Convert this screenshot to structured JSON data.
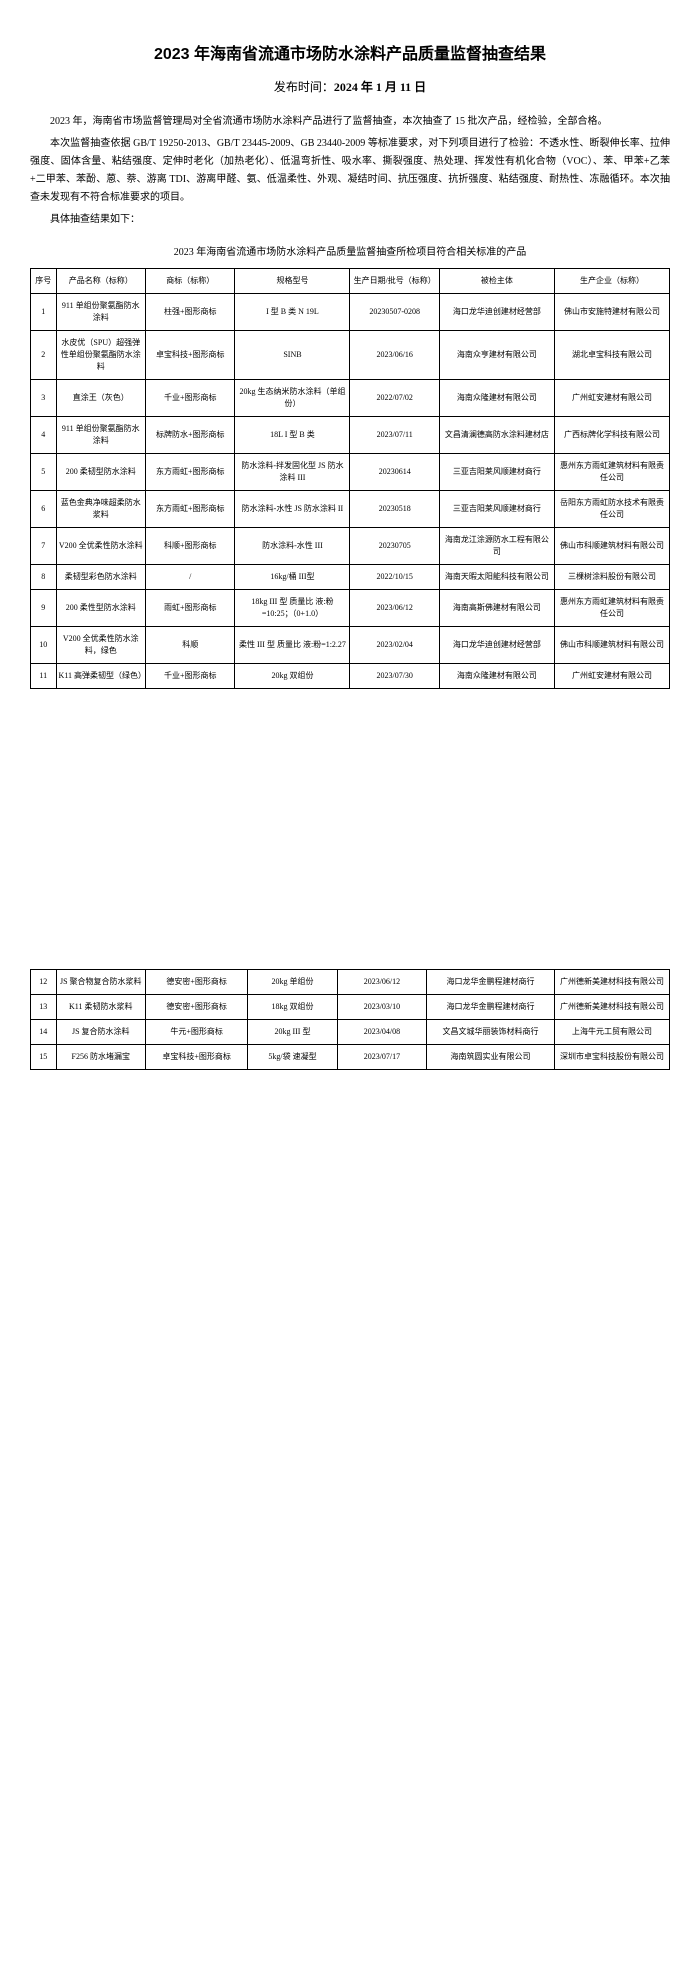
{
  "doc": {
    "title": "2023 年海南省流通市场防水涂料产品质量监督抽查结果",
    "publish_label": "发布时间：",
    "publish_date": "2024 年 1 月 11 日",
    "para1": "2023 年，海南省市场监督管理局对全省流通市场防水涂料产品进行了监督抽查，本次抽查了 15 批次产品，经检验，全部合格。",
    "para2": "本次监督抽查依据 GB/T 19250-2013、GB/T 23445-2009、GB 23440-2009 等标准要求，对下列项目进行了检验：不透水性、断裂伸长率、拉伸强度、固体含量、粘结强度、定伸时老化（加热老化）、低温弯折性、吸水率、撕裂强度、热处理、挥发性有机化合物（VOC）、苯、甲苯+乙苯+二甲苯、苯酚、蒽、萘、游离 TDI、游离甲醛、氨、低温柔性、外观、凝结时间、抗压强度、抗折强度、粘结强度、耐热性、冻融循环。本次抽查未发现有不符合标准要求的项目。",
    "para3": "具体抽查结果如下：",
    "subtitle": "2023 年海南省流通市场防水涂料产品质量监督抽查所检项目符合相关标准的产品",
    "headers": {
      "num": "序号",
      "name": "产品名称（标称）",
      "brand": "商标（标称）",
      "model": "规格型号",
      "date": "生产日期/批号（标称）",
      "checked": "被检主体",
      "producer": "生产企业（标称）"
    },
    "rows": [
      {
        "num": "1",
        "name": "911 单组份聚氨酯防水涂料",
        "brand": "柱强+图形商标",
        "model": "I 型 B 类 N 19L",
        "date": "20230507-0208",
        "checked": "海口龙华迪创建材经营部",
        "producer": "佛山市安施特建材有限公司"
      },
      {
        "num": "2",
        "name": "水皮优（SPU）超强弹性单组份聚氨酯防水涂料",
        "brand": "卓宝科技+图形商标",
        "model": "SINB",
        "date": "2023/06/16",
        "checked": "海南众亨建材有限公司",
        "producer": "湖北卓宝科技有限公司"
      },
      {
        "num": "3",
        "name": "直涂王（灰色）",
        "brand": "千业+图形商标",
        "model": "20kg 生态纳米防水涂料（单组份）",
        "date": "2022/07/02",
        "checked": "海南众隆建材有限公司",
        "producer": "广州虹安建材有限公司"
      },
      {
        "num": "4",
        "name": "911 单组份聚氨酯防水涂料",
        "brand": "标牌防水+图形商标",
        "model": "18L I 型 B 类",
        "date": "2023/07/11",
        "checked": "文昌清澜德高防水涂料建材店",
        "producer": "广西标牌化学科技有限公司"
      },
      {
        "num": "5",
        "name": "200 柔韧型防水涂料",
        "brand": "东方雨虹+图形商标",
        "model": "防水涂料-拌发固化型 JS 防水涂料 III",
        "date": "20230614",
        "checked": "三亚吉阳莱风顺建材商行",
        "producer": "惠州东方雨虹建筑材料有限责任公司"
      },
      {
        "num": "6",
        "name": "蓝色金典净味超柔防水浆料",
        "brand": "东方雨虹+图形商标",
        "model": "防水涂料-水性 JS 防水涂料 II",
        "date": "20230518",
        "checked": "三亚吉阳莱风顺建材商行",
        "producer": "岳阳东方雨虹防水技术有限责任公司"
      },
      {
        "num": "7",
        "name": "V200 全优柔性防水涂料",
        "brand": "科顺+图形商标",
        "model": "防水涂料-水性 III",
        "date": "20230705",
        "checked": "海南龙江涂源防水工程有限公司",
        "producer": "佛山市科顺建筑材料有限公司"
      },
      {
        "num": "8",
        "name": "柔韧型彩色防水涂料",
        "brand": "/",
        "model": "16kg/桶 III型",
        "date": "2022/10/15",
        "checked": "海南天暇太阳能科技有限公司",
        "producer": "三棵树涂料股份有限公司"
      },
      {
        "num": "9",
        "name": "200 柔性型防水涂料",
        "brand": "雨虹+图形商标",
        "model": "18kg III 型 质量比 液:粉=10:25；（0+1.0）",
        "date": "2023/06/12",
        "checked": "海南高斯佛建材有限公司",
        "producer": "惠州东方雨虹建筑材料有限责任公司"
      },
      {
        "num": "10",
        "name": "V200 全优柔性防水涂料，绿色",
        "brand": "科顺",
        "model": "柔性 III 型 质量比 液:粉=1:2.27",
        "date": "2023/02/04",
        "checked": "海口龙华迪创建材经营部",
        "producer": "佛山市科顺建筑材料有限公司"
      },
      {
        "num": "11",
        "name": "K11 高弹柔韧型（绿色）",
        "brand": "千业+图形商标",
        "model": "20kg 双组份",
        "date": "2023/07/30",
        "checked": "海南众隆建材有限公司",
        "producer": "广州虹安建材有限公司"
      }
    ],
    "rows2": [
      {
        "num": "12",
        "name": "JS 聚合物复合防水浆料",
        "brand": "德安密+图形商标",
        "model": "20kg 单组份",
        "date": "2023/06/12",
        "checked": "海口龙华金鹏程建材商行",
        "producer": "广州德新美建材科技有限公司"
      },
      {
        "num": "13",
        "name": "K11 柔韧防水浆料",
        "brand": "德安密+图形商标",
        "model": "18kg 双组份",
        "date": "2023/03/10",
        "checked": "海口龙华金鹏程建材商行",
        "producer": "广州德新美建材科技有限公司"
      },
      {
        "num": "14",
        "name": "JS 复合防水涂料",
        "brand": "牛元+图形商标",
        "model": "20kg III 型",
        "date": "2023/04/08",
        "checked": "文昌文城华丽装饰材料商行",
        "producer": "上海牛元工贸有限公司"
      },
      {
        "num": "15",
        "name": "F256 防水堵漏宝",
        "brand": "卓宝科技+图形商标",
        "model": "5kg/袋 速凝型",
        "date": "2023/07/17",
        "checked": "海南筑圆实业有限公司",
        "producer": "深圳市卓宝科技股份有限公司"
      }
    ]
  }
}
